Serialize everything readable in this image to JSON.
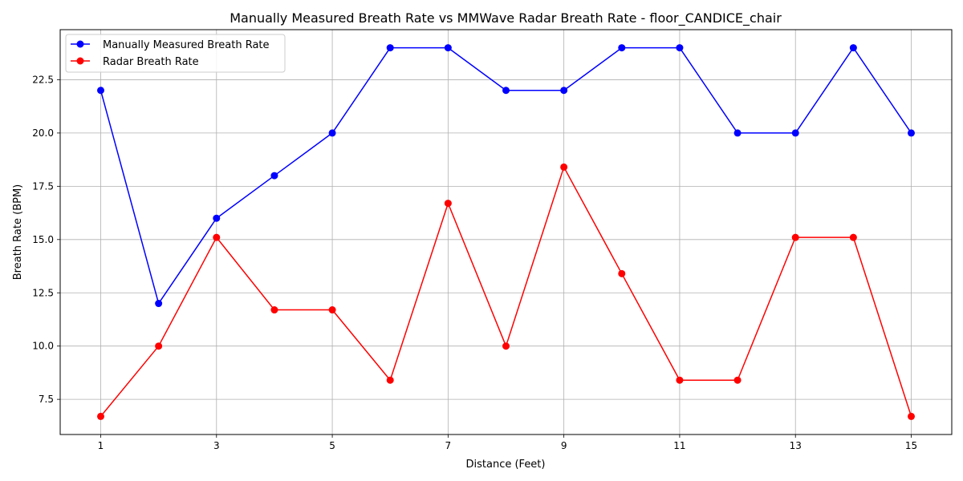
{
  "chart_data": {
    "type": "line",
    "title": "Manually Measured Breath Rate vs MMWave Radar Breath Rate - floor_CANDICE_chair",
    "xlabel": "Distance (Feet)",
    "ylabel": "Breath Rate (BPM)",
    "x": [
      1,
      2,
      3,
      4,
      5,
      6,
      7,
      8,
      9,
      10,
      11,
      12,
      13,
      14,
      15
    ],
    "xticks": [
      1,
      3,
      5,
      7,
      9,
      11,
      13,
      15
    ],
    "yticks": [
      "7.5",
      "10.0",
      "12.5",
      "15.0",
      "17.5",
      "20.0",
      "22.5"
    ],
    "xlim": [
      0.3,
      15.7
    ],
    "ylim": [
      5.85,
      24.85
    ],
    "grid": true,
    "legend_position": "top-left",
    "series": [
      {
        "name": "Manually Measured Breath Rate",
        "color": "#0000ff",
        "values": [
          22,
          12,
          16,
          18,
          20,
          24,
          24,
          22,
          22,
          24,
          24,
          20,
          20,
          24,
          20
        ]
      },
      {
        "name": "Radar Breath Rate",
        "color": "#ff0000",
        "values": [
          6.7,
          10.0,
          15.1,
          11.7,
          11.7,
          8.4,
          16.7,
          10.0,
          18.4,
          13.4,
          8.4,
          8.4,
          15.1,
          15.1,
          6.7
        ]
      }
    ]
  }
}
